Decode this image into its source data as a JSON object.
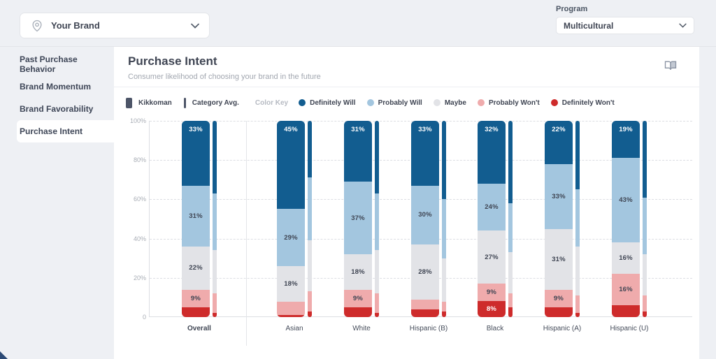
{
  "topbar": {
    "brand_selector": {
      "label": "Your Brand"
    },
    "program": {
      "label": "Program",
      "value": "Multicultural"
    }
  },
  "sidebar": {
    "items": [
      {
        "label": "Past Purchase Behavior",
        "active": false
      },
      {
        "label": "Brand Momentum",
        "active": false
      },
      {
        "label": "Brand Favorability",
        "active": false
      },
      {
        "label": "Purchase Intent",
        "active": true
      }
    ]
  },
  "main": {
    "title": "Purchase Intent",
    "subtitle": "Consumer likelihood of choosing your brand in the future"
  },
  "legend": {
    "brand_label": "Kikkoman",
    "category_avg_label": "Category Avg.",
    "color_key_label": "Color Key",
    "keys": [
      {
        "label": "Definitely Will",
        "color": "#125D90"
      },
      {
        "label": "Probably Will",
        "color": "#A3C6DF"
      },
      {
        "label": "Maybe",
        "color": "#E2E3E7"
      },
      {
        "label": "Probably Won't",
        "color": "#EFABAC"
      },
      {
        "label": "Definitely Won't",
        "color": "#CE2B2B"
      }
    ]
  },
  "chart_data": {
    "type": "bar",
    "stacked": true,
    "title": "Purchase Intent",
    "ylim": [
      0,
      100
    ],
    "yticks": [
      "100%",
      "80%",
      "60%",
      "40%",
      "20%",
      "0"
    ],
    "grid": "dashed-horizontal",
    "categories": [
      "Overall",
      "Asian",
      "White",
      "Hispanic (B)",
      "Black",
      "Hispanic (A)",
      "Hispanic (U)"
    ],
    "segment_order": [
      "Definitely Will",
      "Probably Will",
      "Maybe",
      "Probably Won't",
      "Definitely Won't"
    ],
    "segment_colors": [
      "#125D90",
      "#A3C6DF",
      "#E2E3E7",
      "#EFABAC",
      "#CE2B2B"
    ],
    "series": [
      {
        "name": "Kikkoman",
        "values": [
          [
            33,
            31,
            22,
            9,
            5
          ],
          [
            45,
            29,
            18,
            7,
            1
          ],
          [
            31,
            37,
            18,
            9,
            5
          ],
          [
            33,
            30,
            28,
            5,
            4
          ],
          [
            32,
            24,
            27,
            9,
            8
          ],
          [
            22,
            33,
            31,
            9,
            5
          ],
          [
            19,
            43,
            16,
            16,
            6
          ]
        ],
        "labels": [
          [
            "33%",
            "31%",
            "22%",
            "9%",
            ""
          ],
          [
            "45%",
            "29%",
            "18%",
            "",
            ""
          ],
          [
            "31%",
            "37%",
            "18%",
            "9%",
            ""
          ],
          [
            "33%",
            "30%",
            "28%",
            "",
            ""
          ],
          [
            "32%",
            "24%",
            "27%",
            "9%",
            "8%"
          ],
          [
            "22%",
            "33%",
            "31%",
            "9%",
            ""
          ],
          [
            "19%",
            "43%",
            "16%",
            "16%",
            ""
          ]
        ]
      },
      {
        "name": "Category Avg.",
        "values": [
          [
            37,
            29,
            22,
            10,
            2
          ],
          [
            29,
            32,
            26,
            10,
            3
          ],
          [
            37,
            29,
            22,
            10,
            2
          ],
          [
            40,
            30,
            22,
            5,
            3
          ],
          [
            42,
            25,
            21,
            7,
            5
          ],
          [
            35,
            29,
            25,
            9,
            2
          ],
          [
            39,
            29,
            21,
            8,
            3
          ]
        ]
      }
    ]
  }
}
